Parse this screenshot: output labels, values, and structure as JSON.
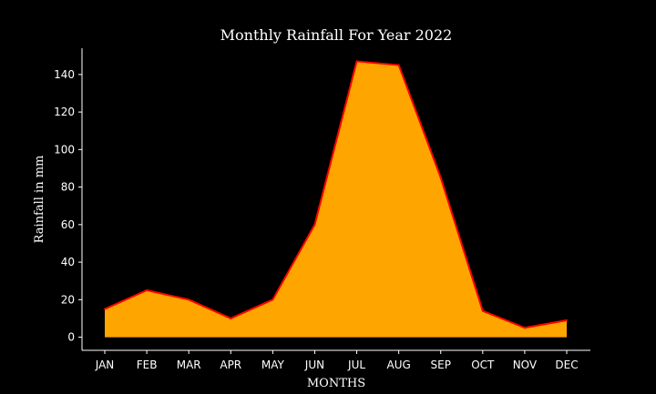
{
  "chart_data": {
    "type": "area",
    "title": "Monthly Rainfall For Year 2022",
    "xlabel": "MONTHS",
    "ylabel": "Rainfall in mm",
    "categories": [
      "JAN",
      "FEB",
      "MAR",
      "APR",
      "MAY",
      "JUN",
      "JUL",
      "AUG",
      "SEP",
      "OCT",
      "NOV",
      "DEC"
    ],
    "series": [
      {
        "values": [
          15,
          25,
          20,
          10,
          20,
          60,
          147,
          145,
          85,
          14,
          5,
          9
        ]
      }
    ],
    "ylim": [
      -7,
      154
    ],
    "yticks": [
      0,
      20,
      40,
      60,
      80,
      100,
      120,
      140
    ],
    "grid": false,
    "colors": {
      "background": "#000000",
      "fill": "#ffa500",
      "line": "#ff0000",
      "axis": "#ffffff",
      "text": "#ffffff"
    }
  }
}
